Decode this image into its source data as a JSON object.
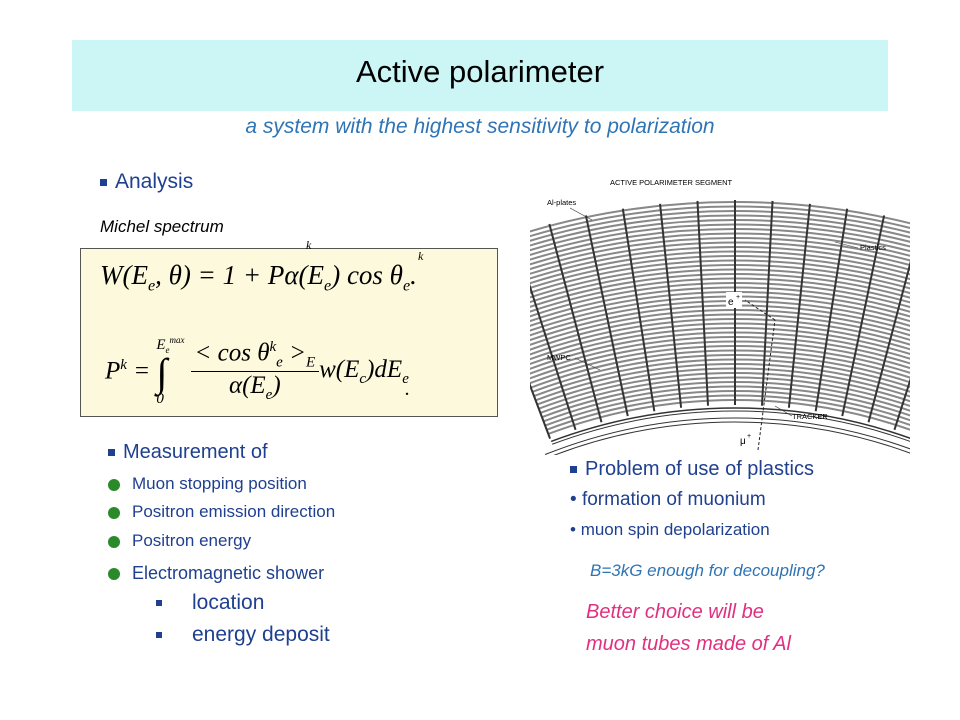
{
  "header": {
    "title": "Active polarimeter",
    "subtitle": "a system with the highest sensitivity to polarization"
  },
  "analysis": {
    "heading": "Analysis",
    "label": "Michel spectrum",
    "k_marks": [
      "k",
      "k"
    ],
    "eq1": [
      "W(E",
      "e",
      ", θ) = 1 + Pα(E",
      "e",
      ") cos θ",
      "e",
      "."
    ],
    "eq2": {
      "lhs": "P",
      "lhs_sup": "k",
      "eq": " = ",
      "integral": "∫",
      "lower": "0",
      "upper": "E",
      "upper_sub": "e",
      "upper_sup": "max",
      "num": "< cos θ",
      "num_sup": "k",
      "num_sub": "e",
      "num_close": " >",
      "num_close_sub": "E",
      "den": "α(E",
      "den_sub": "e",
      "den_close": ")",
      "tail": "w(E",
      "tail_sub": "c",
      "tail2": ")dE",
      "tail2_sub": "e",
      "dot": "."
    }
  },
  "measurement": {
    "heading": "Measurement of",
    "items": [
      "Muon stopping position",
      "Positron emission direction",
      "Positron energy",
      "Electromagnetic shower"
    ],
    "subitems": [
      "location",
      "energy deposit"
    ]
  },
  "diagram": {
    "title": "ACTIVE   POLARIMETER   SEGMENT",
    "labels": {
      "al": "Al-plates",
      "plastics": "Plastics",
      "mwpc": "MWPC",
      "tracker": "TRACKER",
      "positron": "e",
      "positron_sup": "+",
      "muon": "μ",
      "muon_sup": "+"
    }
  },
  "problem": {
    "heading": "Problem of use of plastics",
    "items": [
      "formation of muonium",
      "muon spin depolarization"
    ],
    "note": "B=3kG enough for decoupling?",
    "conclusion": [
      "Better choice will be",
      "muon tubes made of Al"
    ]
  }
}
